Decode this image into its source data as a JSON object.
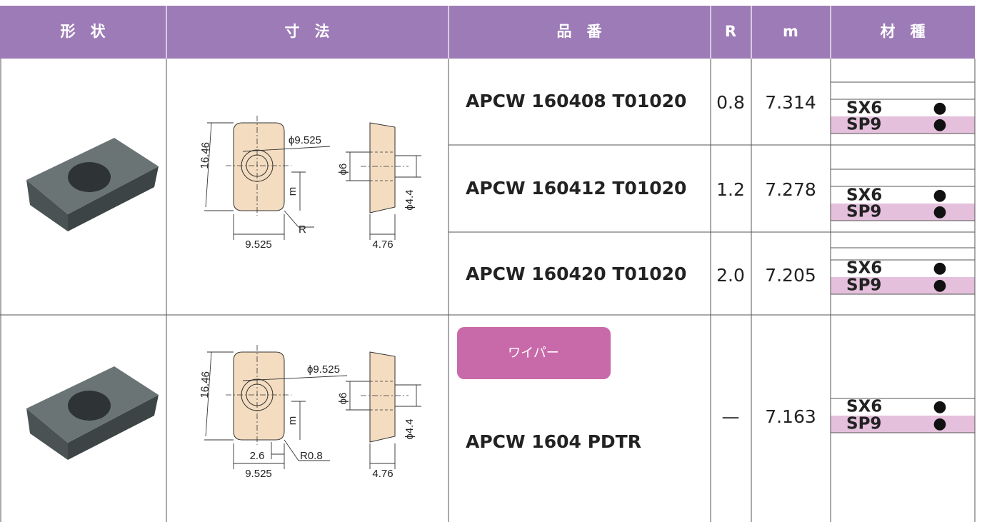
{
  "header": {
    "columns": [
      "形　状",
      "寸　法",
      "品　番",
      "R",
      "m",
      "材　種"
    ]
  },
  "groups": [
    {
      "drawing": {
        "height": "16.46",
        "circle": "ϕ9.525",
        "hole": "ϕ6",
        "m": "m",
        "bore": "ϕ4.4",
        "radius": "R",
        "width": "9.525",
        "thickness": "4.76"
      },
      "rows": [
        {
          "part": "APCW 160408 T01020",
          "r": "0.8",
          "m": "7.314",
          "grades": [
            {
              "name": "SX6",
              "mark": "●"
            },
            {
              "name": "SP9",
              "mark": "●"
            }
          ]
        },
        {
          "part": "APCW 160412 T01020",
          "r": "1.2",
          "m": "7.278",
          "grades": [
            {
              "name": "SX6",
              "mark": "●"
            },
            {
              "name": "SP9",
              "mark": "●"
            }
          ]
        },
        {
          "part": "APCW 160420 T01020",
          "r": "2.0",
          "m": "7.205",
          "grades": [
            {
              "name": "SX6",
              "mark": "●"
            },
            {
              "name": "SP9",
              "mark": "●"
            }
          ]
        }
      ]
    },
    {
      "drawing": {
        "height": "16.46",
        "circle": "ϕ9.525",
        "hole": "ϕ6",
        "m": "m",
        "bore": "ϕ4.4",
        "offset": "2.6",
        "radius": "R0.8",
        "width": "9.525",
        "thickness": "4.76"
      },
      "rows": [
        {
          "badge": "ワイパー",
          "part": "APCW 1604 PDTR",
          "r": "—",
          "m": "7.163",
          "grades": [
            {
              "name": "SX6",
              "mark": "●"
            },
            {
              "name": "SP9",
              "mark": "●"
            }
          ]
        }
      ]
    }
  ]
}
